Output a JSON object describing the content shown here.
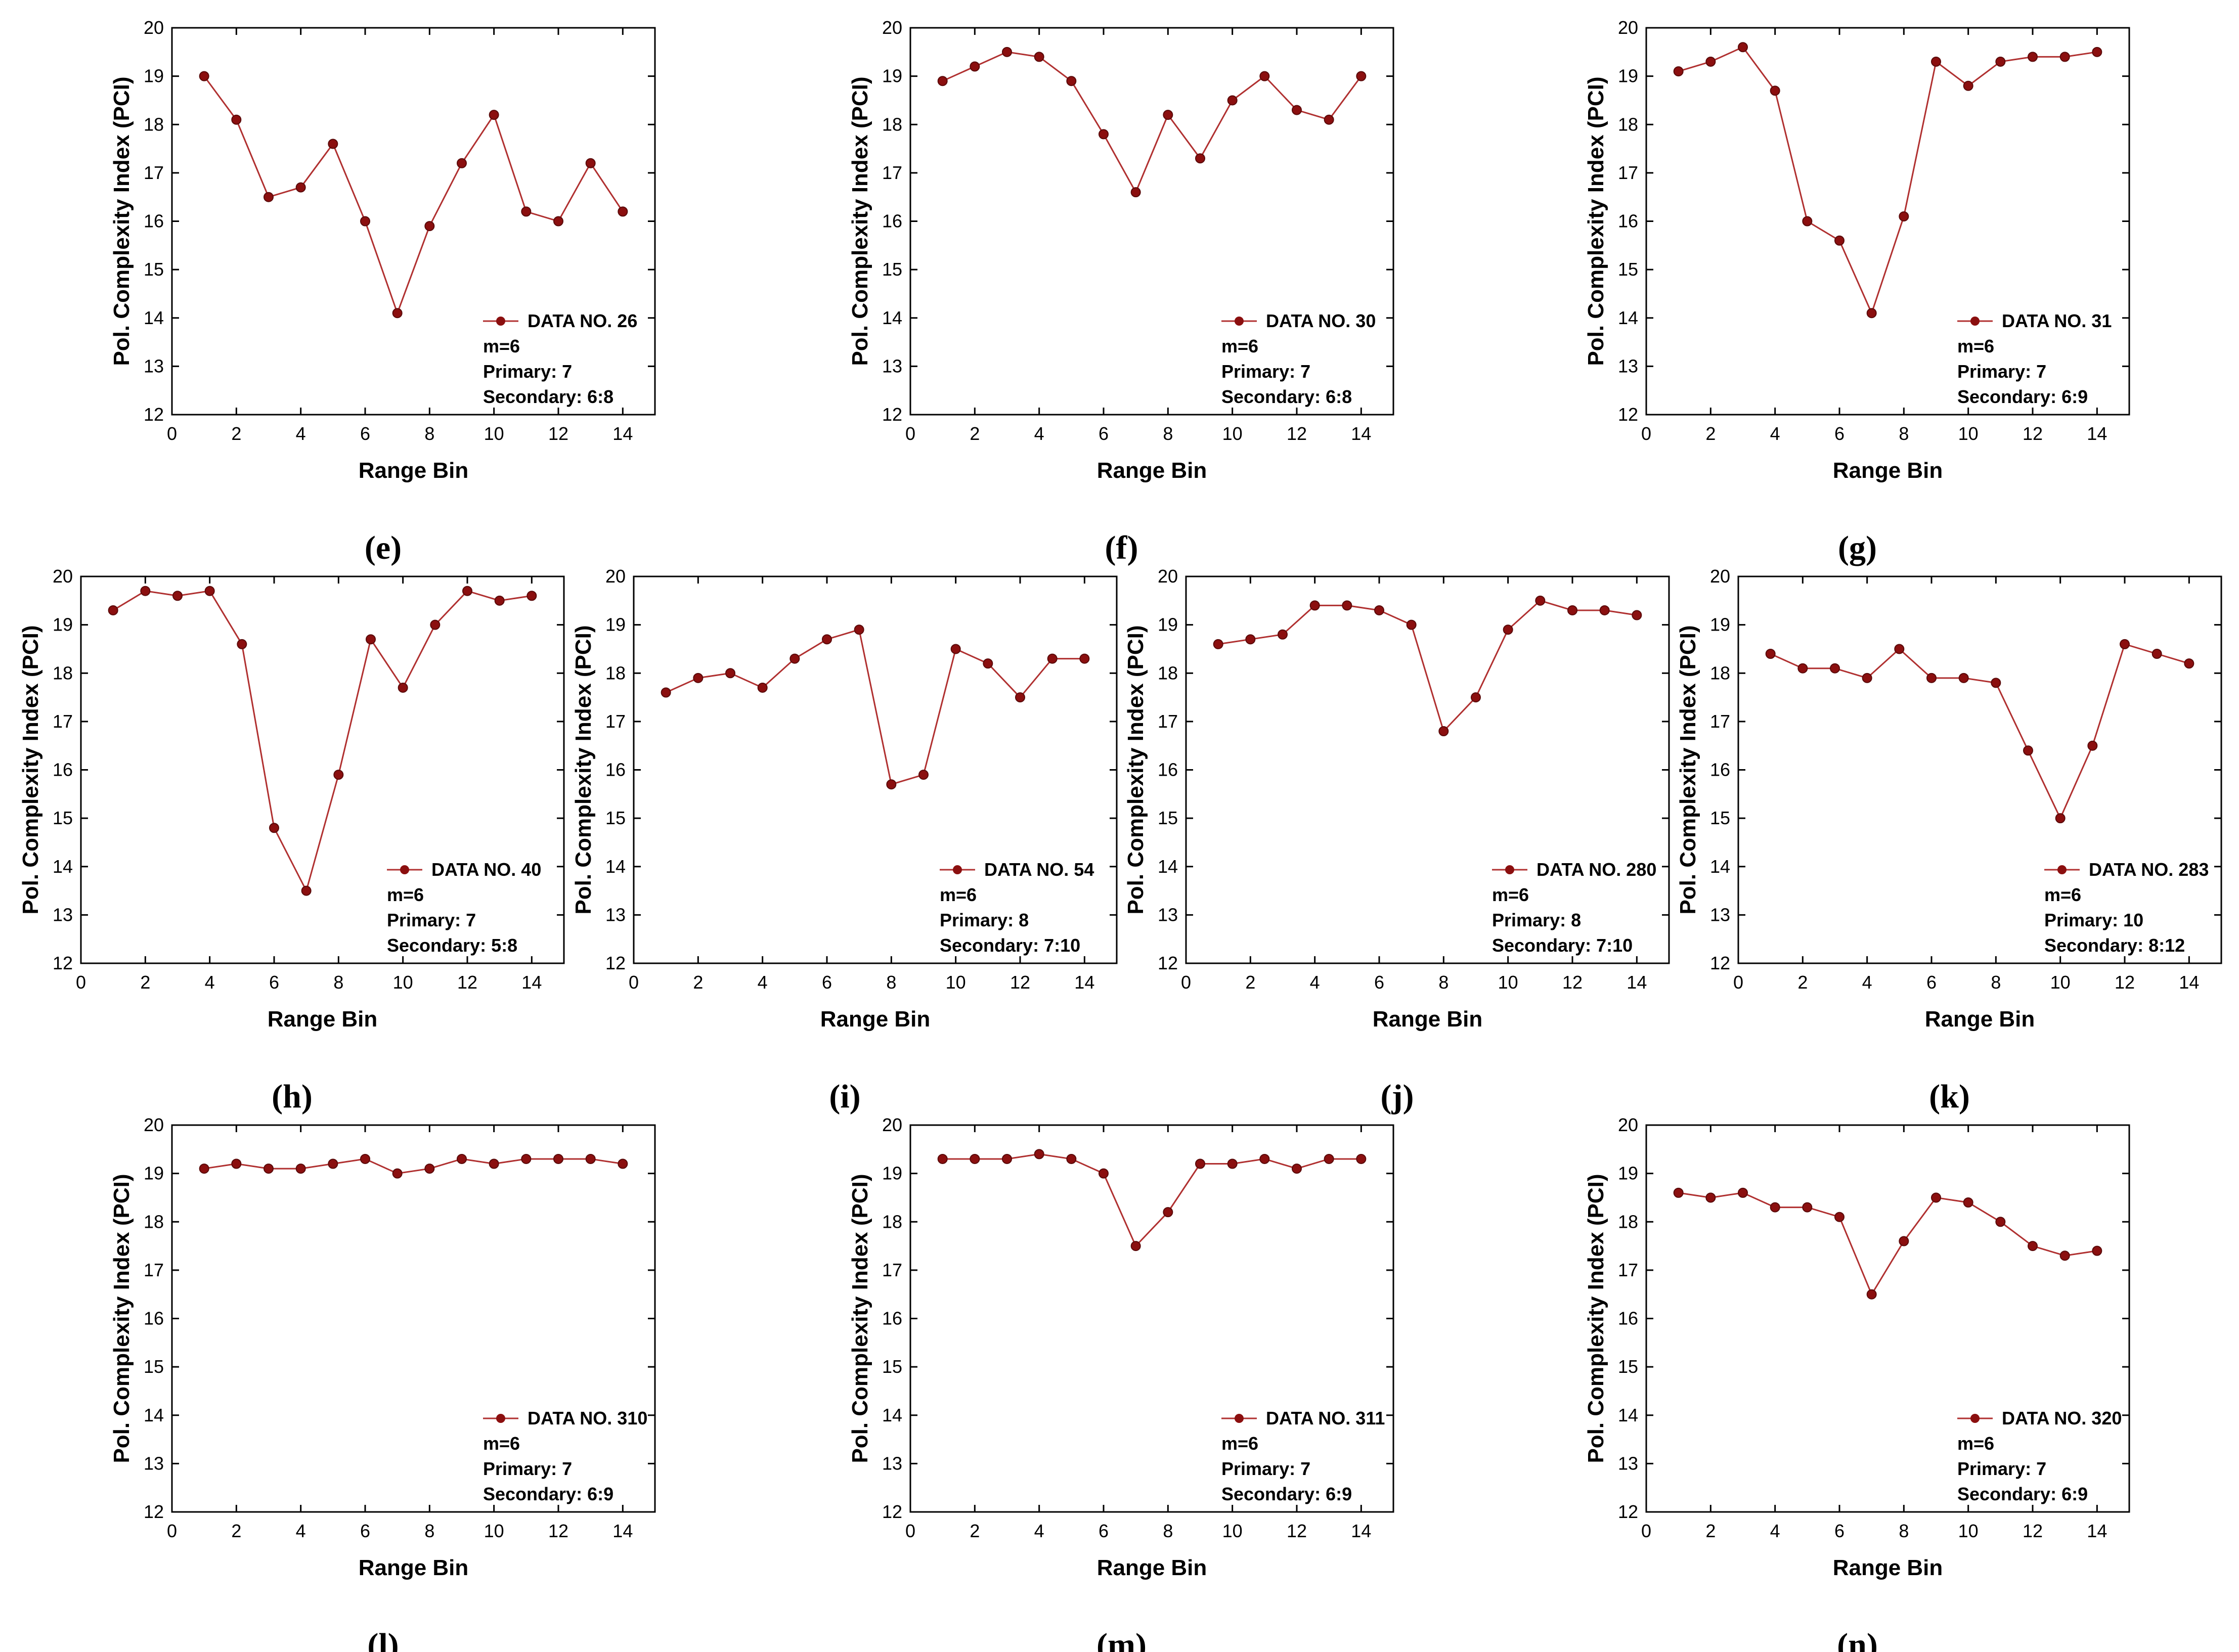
{
  "figure": {
    "series_color": "#b03030",
    "marker_color": "#8b0f0f"
  },
  "chart_data": [
    {
      "panel": "(e)",
      "type": "line",
      "xlabel": "Range Bin",
      "ylabel": "Pol. Complexity Index (PCI)",
      "xlim": [
        0,
        15
      ],
      "ylim": [
        12,
        20
      ],
      "xticks": [
        "0",
        "2",
        "4",
        "6",
        "8",
        "10",
        "12",
        "14"
      ],
      "yticks": [
        "12",
        "13",
        "14",
        "15",
        "16",
        "17",
        "18",
        "19",
        "20"
      ],
      "series": [
        {
          "name": "DATA NO. 26",
          "x": [
            1,
            2,
            3,
            4,
            5,
            6,
            7,
            8,
            9,
            10,
            11,
            12,
            13,
            14
          ],
          "values": [
            19.0,
            18.1,
            16.5,
            16.7,
            17.6,
            16.0,
            14.1,
            15.9,
            17.2,
            18.2,
            16.2,
            16.0,
            17.2,
            16.2
          ]
        }
      ],
      "annotations": [
        "m=6",
        "Primary: 7",
        "Secondary: 6:8"
      ]
    },
    {
      "panel": "(f)",
      "type": "line",
      "xlabel": "Range Bin",
      "ylabel": "Pol. Complexity Index (PCI)",
      "xlim": [
        0,
        15
      ],
      "ylim": [
        12,
        20
      ],
      "xticks": [
        "0",
        "2",
        "4",
        "6",
        "8",
        "10",
        "12",
        "14"
      ],
      "yticks": [
        "12",
        "13",
        "14",
        "15",
        "16",
        "17",
        "18",
        "19",
        "20"
      ],
      "series": [
        {
          "name": "DATA NO. 30",
          "x": [
            1,
            2,
            3,
            4,
            5,
            6,
            7,
            8,
            9,
            10,
            11,
            12,
            13,
            14
          ],
          "values": [
            18.9,
            19.2,
            19.5,
            19.4,
            18.9,
            17.8,
            16.6,
            18.2,
            17.3,
            18.5,
            19.0,
            18.3,
            18.1,
            19.0
          ]
        }
      ],
      "annotations": [
        "m=6",
        "Primary: 7",
        "Secondary: 6:8"
      ]
    },
    {
      "panel": "(g)",
      "type": "line",
      "xlabel": "Range Bin",
      "ylabel": "Pol. Complexity Index (PCI)",
      "xlim": [
        0,
        15
      ],
      "ylim": [
        12,
        20
      ],
      "xticks": [
        "0",
        "2",
        "4",
        "6",
        "8",
        "10",
        "12",
        "14"
      ],
      "yticks": [
        "12",
        "13",
        "14",
        "15",
        "16",
        "17",
        "18",
        "19",
        "20"
      ],
      "series": [
        {
          "name": "DATA NO. 31",
          "x": [
            1,
            2,
            3,
            4,
            5,
            6,
            7,
            8,
            9,
            10,
            11,
            12,
            13,
            14
          ],
          "values": [
            19.1,
            19.3,
            19.6,
            18.7,
            16.0,
            15.6,
            14.1,
            16.1,
            19.3,
            18.8,
            19.3,
            19.4,
            19.4,
            19.5
          ]
        }
      ],
      "annotations": [
        "m=6",
        "Primary: 7",
        "Secondary: 6:9"
      ]
    },
    {
      "panel": "(h)",
      "type": "line",
      "xlabel": "Range Bin",
      "ylabel": "Pol. Complexity Index (PCI)",
      "xlim": [
        0,
        15
      ],
      "ylim": [
        12,
        20
      ],
      "xticks": [
        "0",
        "2",
        "4",
        "6",
        "8",
        "10",
        "12",
        "14"
      ],
      "yticks": [
        "12",
        "13",
        "14",
        "15",
        "16",
        "17",
        "18",
        "19",
        "20"
      ],
      "series": [
        {
          "name": "DATA NO. 40",
          "x": [
            1,
            2,
            3,
            4,
            5,
            6,
            7,
            8,
            9,
            10,
            11,
            12,
            13,
            14
          ],
          "values": [
            19.3,
            19.7,
            19.6,
            19.7,
            18.6,
            14.8,
            13.5,
            15.9,
            18.7,
            17.7,
            19.0,
            19.7,
            19.5,
            19.6
          ]
        }
      ],
      "annotations": [
        "m=6",
        "Primary: 7",
        "Secondary: 5:8"
      ]
    },
    {
      "panel": "(i)",
      "type": "line",
      "xlabel": "Range Bin",
      "ylabel": "Pol. Complexity Index (PCI)",
      "xlim": [
        0,
        15
      ],
      "ylim": [
        12,
        20
      ],
      "xticks": [
        "0",
        "2",
        "4",
        "6",
        "8",
        "10",
        "12",
        "14"
      ],
      "yticks": [
        "12",
        "13",
        "14",
        "15",
        "16",
        "17",
        "18",
        "19",
        "20"
      ],
      "series": [
        {
          "name": "DATA NO. 54",
          "x": [
            1,
            2,
            3,
            4,
            5,
            6,
            7,
            8,
            9,
            10,
            11,
            12,
            13,
            14
          ],
          "values": [
            17.6,
            17.9,
            18.0,
            17.7,
            18.3,
            18.7,
            18.9,
            15.7,
            15.9,
            18.5,
            18.2,
            17.5,
            18.3,
            18.3
          ]
        }
      ],
      "annotations": [
        "m=6",
        "Primary: 8",
        "Secondary: 7:10"
      ]
    },
    {
      "panel": "(j)",
      "type": "line",
      "xlabel": "Range Bin",
      "ylabel": "Pol. Complexity Index (PCI)",
      "xlim": [
        0,
        15
      ],
      "ylim": [
        12,
        20
      ],
      "xticks": [
        "0",
        "2",
        "4",
        "6",
        "8",
        "10",
        "12",
        "14"
      ],
      "yticks": [
        "12",
        "13",
        "14",
        "15",
        "16",
        "17",
        "18",
        "19",
        "20"
      ],
      "series": [
        {
          "name": "DATA NO. 280",
          "x": [
            1,
            2,
            3,
            4,
            5,
            6,
            7,
            8,
            9,
            10,
            11,
            12,
            13,
            14
          ],
          "values": [
            18.6,
            18.7,
            18.8,
            19.4,
            19.4,
            19.3,
            19.0,
            16.8,
            17.5,
            18.9,
            19.5,
            19.3,
            19.3,
            19.2
          ]
        }
      ],
      "annotations": [
        "m=6",
        "Primary: 8",
        "Secondary: 7:10"
      ]
    },
    {
      "panel": "(k)",
      "type": "line",
      "xlabel": "Range Bin",
      "ylabel": "Pol. Complexity Index (PCI)",
      "xlim": [
        0,
        15
      ],
      "ylim": [
        12,
        20
      ],
      "xticks": [
        "0",
        "2",
        "4",
        "6",
        "8",
        "10",
        "12",
        "14"
      ],
      "yticks": [
        "12",
        "13",
        "14",
        "15",
        "16",
        "17",
        "18",
        "19",
        "20"
      ],
      "series": [
        {
          "name": "DATA NO. 283",
          "x": [
            1,
            2,
            3,
            4,
            5,
            6,
            7,
            8,
            9,
            10,
            11,
            12,
            13,
            14
          ],
          "values": [
            18.4,
            18.1,
            18.1,
            17.9,
            18.5,
            17.9,
            17.9,
            17.8,
            16.4,
            15.0,
            16.5,
            18.6,
            18.4,
            18.2
          ]
        }
      ],
      "annotations": [
        "m=6",
        "Primary: 10",
        "Secondary: 8:12"
      ]
    },
    {
      "panel": "(l)",
      "type": "line",
      "xlabel": "Range Bin",
      "ylabel": "Pol. Complexity Index (PCI)",
      "xlim": [
        0,
        15
      ],
      "ylim": [
        12,
        20
      ],
      "xticks": [
        "0",
        "2",
        "4",
        "6",
        "8",
        "10",
        "12",
        "14"
      ],
      "yticks": [
        "12",
        "13",
        "14",
        "15",
        "16",
        "17",
        "18",
        "19",
        "20"
      ],
      "series": [
        {
          "name": "DATA NO. 310",
          "x": [
            1,
            2,
            3,
            4,
            5,
            6,
            7,
            8,
            9,
            10,
            11,
            12,
            13,
            14
          ],
          "values": [
            19.1,
            19.2,
            19.1,
            19.1,
            19.2,
            19.3,
            19.0,
            19.1,
            19.3,
            19.2,
            19.3,
            19.3,
            19.3,
            19.2
          ]
        }
      ],
      "annotations": [
        "m=6",
        "Primary: 7",
        "Secondary: 6:9"
      ]
    },
    {
      "panel": "(m)",
      "type": "line",
      "xlabel": "Range Bin",
      "ylabel": "Pol. Complexity Index (PCI)",
      "xlim": [
        0,
        15
      ],
      "ylim": [
        12,
        20
      ],
      "xticks": [
        "0",
        "2",
        "4",
        "6",
        "8",
        "10",
        "12",
        "14"
      ],
      "yticks": [
        "12",
        "13",
        "14",
        "15",
        "16",
        "17",
        "18",
        "19",
        "20"
      ],
      "series": [
        {
          "name": "DATA NO. 311",
          "x": [
            1,
            2,
            3,
            4,
            5,
            6,
            7,
            8,
            9,
            10,
            11,
            12,
            13,
            14
          ],
          "values": [
            19.3,
            19.3,
            19.3,
            19.4,
            19.3,
            19.0,
            17.5,
            18.2,
            19.2,
            19.2,
            19.3,
            19.1,
            19.3,
            19.3
          ]
        }
      ],
      "annotations": [
        "m=6",
        "Primary: 7",
        "Secondary: 6:9"
      ]
    },
    {
      "panel": "(n)",
      "type": "line",
      "xlabel": "Range Bin",
      "ylabel": "Pol. Complexity Index (PCI)",
      "xlim": [
        0,
        15
      ],
      "ylim": [
        12,
        20
      ],
      "xticks": [
        "0",
        "2",
        "4",
        "6",
        "8",
        "10",
        "12",
        "14"
      ],
      "yticks": [
        "12",
        "13",
        "14",
        "15",
        "16",
        "17",
        "18",
        "19",
        "20"
      ],
      "series": [
        {
          "name": "DATA NO. 320",
          "x": [
            1,
            2,
            3,
            4,
            5,
            6,
            7,
            8,
            9,
            10,
            11,
            12,
            13,
            14
          ],
          "values": [
            18.6,
            18.5,
            18.6,
            18.3,
            18.3,
            18.1,
            16.5,
            17.6,
            18.5,
            18.4,
            18.0,
            17.5,
            17.3,
            17.4
          ]
        }
      ],
      "annotations": [
        "m=6",
        "Primary: 7",
        "Secondary: 6:9"
      ]
    }
  ]
}
